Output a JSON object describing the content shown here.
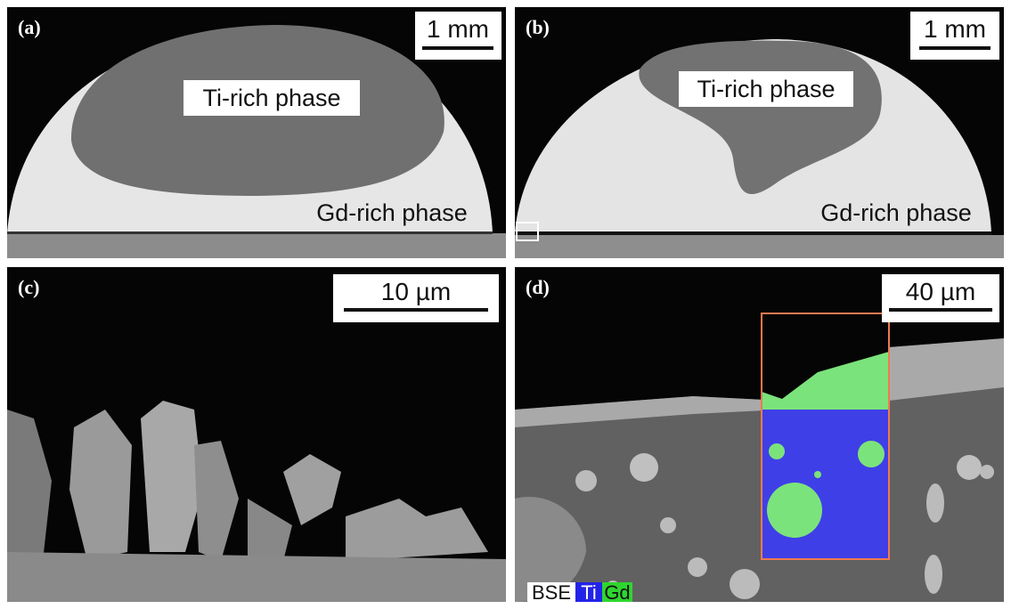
{
  "panels": [
    {
      "label": "(a)",
      "scale_bar": "1 mm",
      "annotations": [
        "Ti-rich phase",
        "Gd-rich phase"
      ]
    },
    {
      "label": "(b)",
      "scale_bar": "1 mm",
      "annotations": [
        "Ti-rich phase",
        "Gd-rich phase"
      ]
    },
    {
      "label": "(c)",
      "scale_bar": "10 µm"
    },
    {
      "label": "(d)",
      "scale_bar": "40 µm",
      "legend": [
        "BSE",
        "Ti",
        "Gd"
      ]
    }
  ]
}
